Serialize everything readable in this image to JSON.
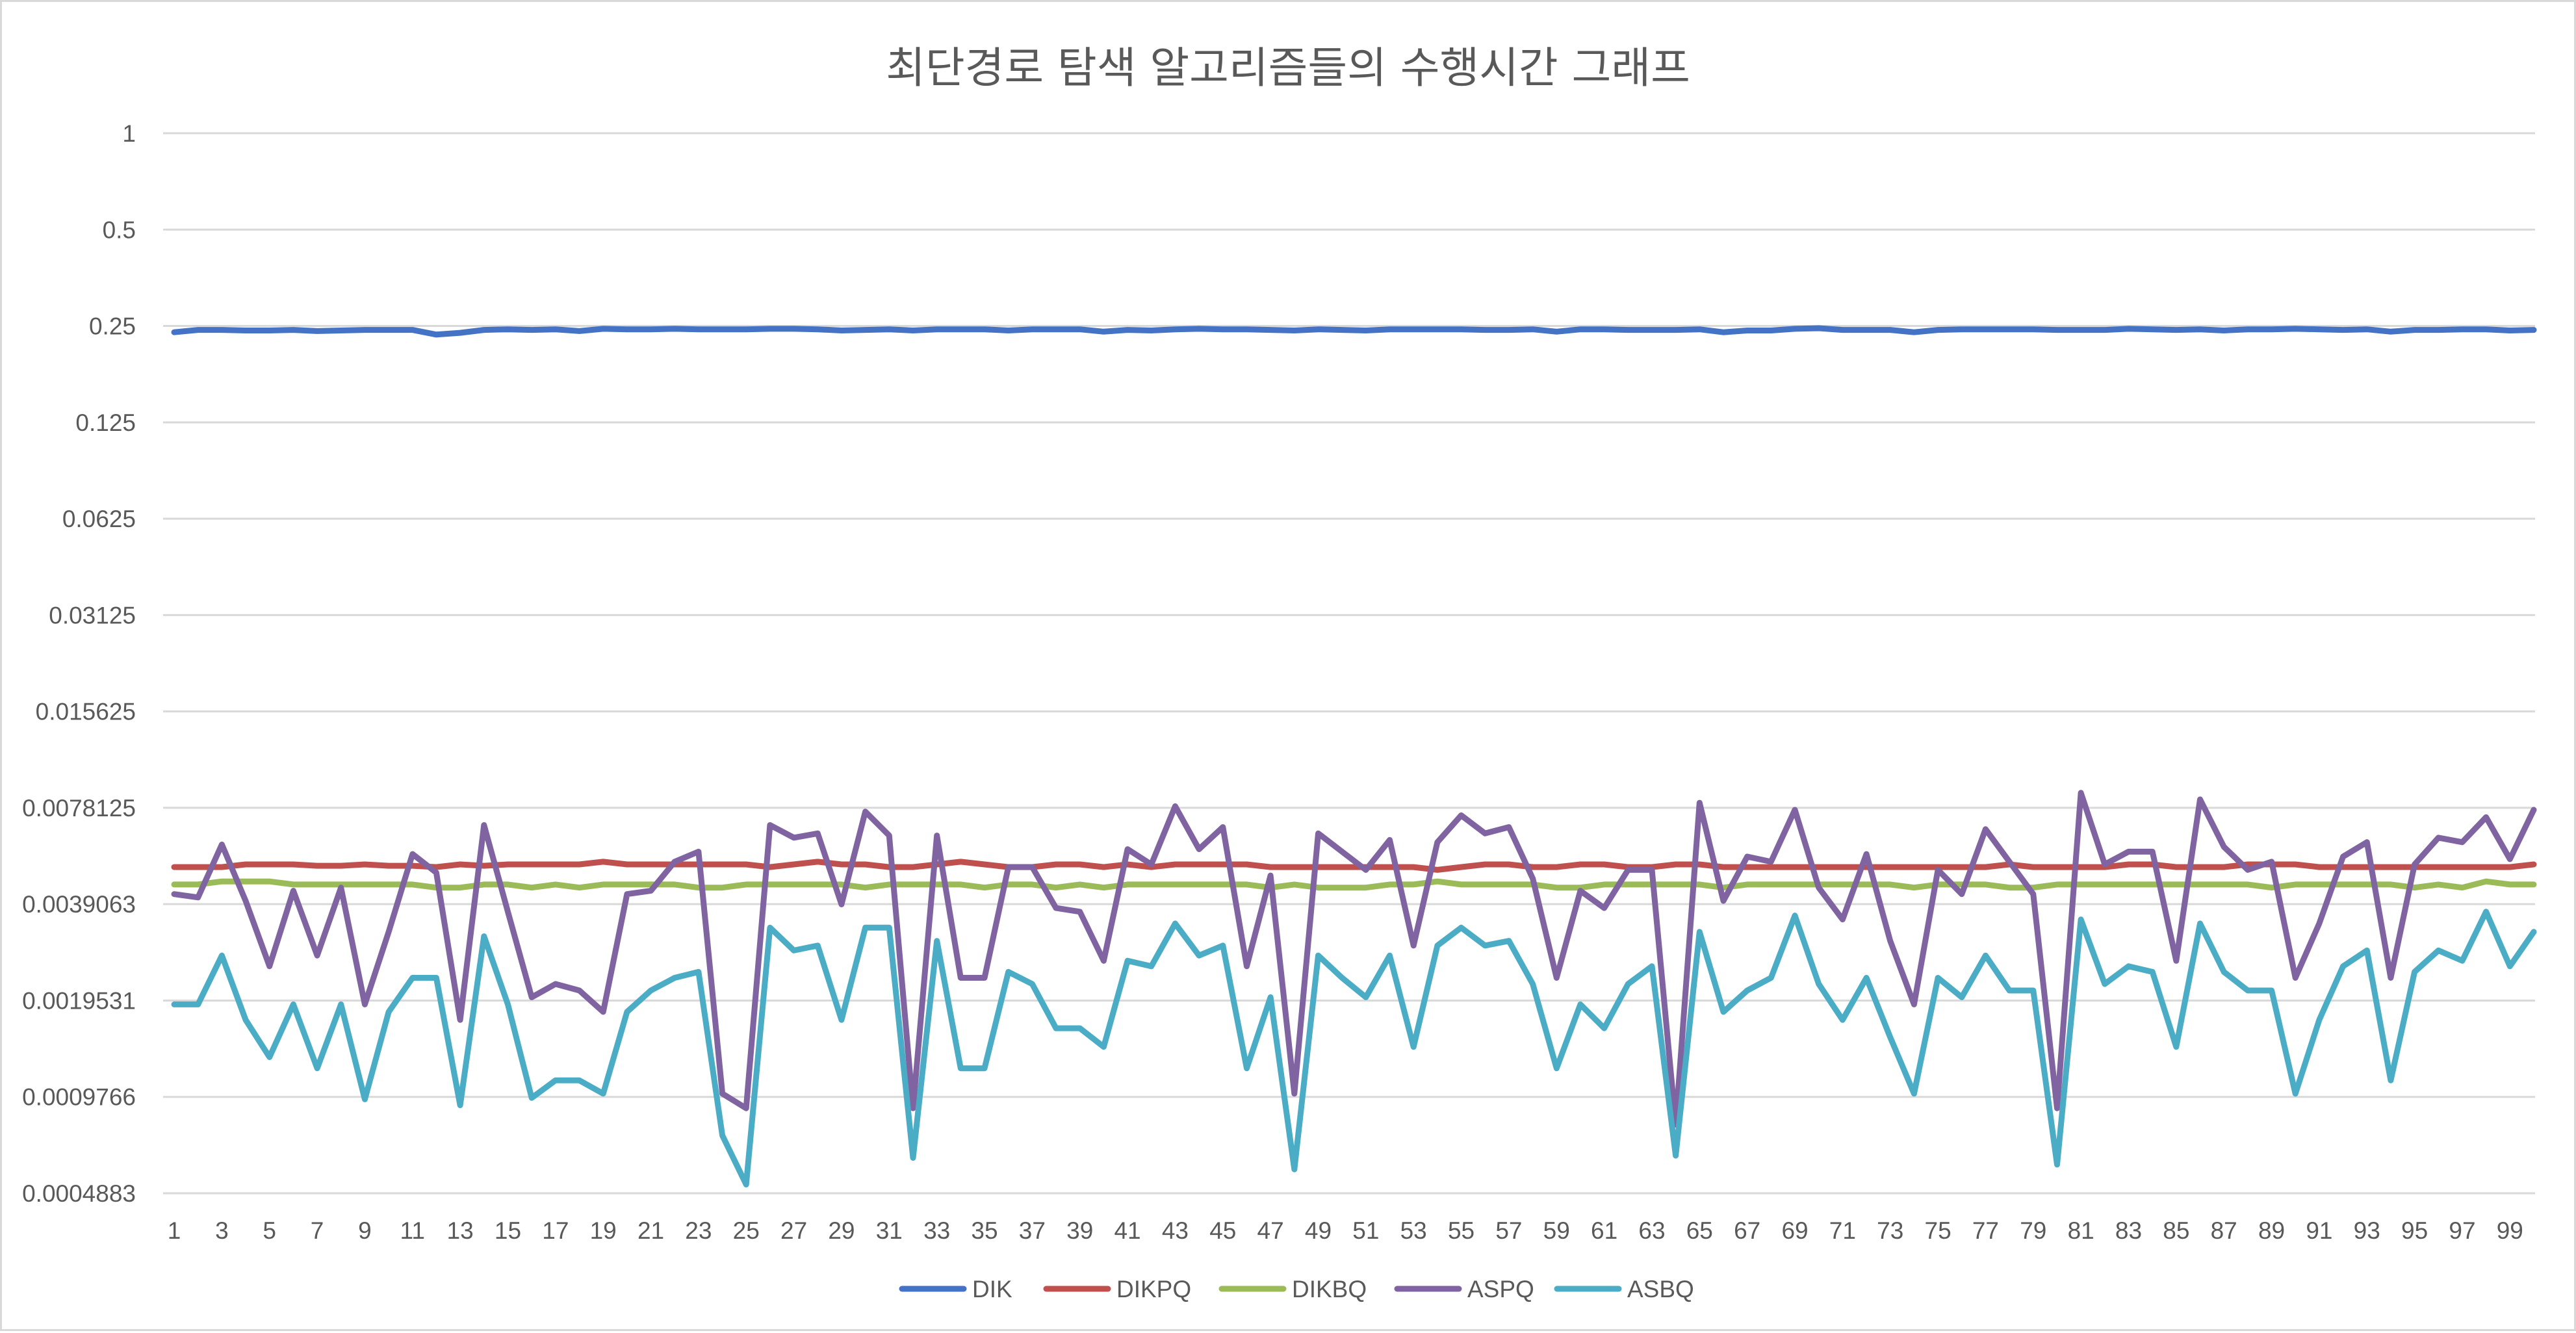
{
  "chart_data": {
    "type": "line",
    "title": "최단경로 탐색 알고리즘들의 수행시간 그래프",
    "xlabel": "",
    "ylabel": "",
    "y_scale": "log2",
    "ylim": [
      0.0004883,
      1
    ],
    "y_ticks": [
      "1",
      "0.5",
      "0.25",
      "0.125",
      "0.0625",
      "0.03125",
      "0.015625",
      "0.0078125",
      "0.0039063",
      "0.0019531",
      "0.0009766",
      "0.0004883"
    ],
    "y_tick_values": [
      1,
      0.5,
      0.25,
      0.125,
      0.0625,
      0.03125,
      0.015625,
      0.0078125,
      0.0039063,
      0.0019531,
      0.0009766,
      0.0004883
    ],
    "x_tick_labels": [
      "1",
      "3",
      "5",
      "7",
      "9",
      "11",
      "13",
      "15",
      "17",
      "19",
      "21",
      "23",
      "25",
      "27",
      "29",
      "31",
      "33",
      "35",
      "37",
      "39",
      "41",
      "43",
      "45",
      "47",
      "49",
      "51",
      "53",
      "55",
      "57",
      "59",
      "61",
      "63",
      "65",
      "67",
      "69",
      "71",
      "73",
      "75",
      "77",
      "79",
      "81",
      "83",
      "85",
      "87",
      "89",
      "91",
      "93",
      "95",
      "97",
      "99"
    ],
    "grid": true,
    "legend_position": "bottom",
    "x": [
      1,
      2,
      3,
      4,
      5,
      6,
      7,
      8,
      9,
      10,
      11,
      12,
      13,
      14,
      15,
      16,
      17,
      18,
      19,
      20,
      21,
      22,
      23,
      24,
      25,
      26,
      27,
      28,
      29,
      30,
      31,
      32,
      33,
      34,
      35,
      36,
      37,
      38,
      39,
      40,
      41,
      42,
      43,
      44,
      45,
      46,
      47,
      48,
      49,
      50,
      51,
      52,
      53,
      54,
      55,
      56,
      57,
      58,
      59,
      60,
      61,
      62,
      63,
      64,
      65,
      66,
      67,
      68,
      69,
      70,
      71,
      72,
      73,
      74,
      75,
      76,
      77,
      78,
      79,
      80,
      81,
      82,
      83,
      84,
      85,
      86,
      87,
      88,
      89,
      90,
      91,
      92,
      93,
      94,
      95,
      96,
      97,
      98,
      99,
      100
    ],
    "series": [
      {
        "name": "DIK",
        "color": "#4472c4",
        "values": [
          0.239,
          0.243,
          0.243,
          0.242,
          0.242,
          0.243,
          0.241,
          0.242,
          0.243,
          0.243,
          0.243,
          0.235,
          0.238,
          0.243,
          0.244,
          0.243,
          0.244,
          0.241,
          0.245,
          0.244,
          0.244,
          0.245,
          0.244,
          0.244,
          0.244,
          0.245,
          0.245,
          0.244,
          0.242,
          0.243,
          0.244,
          0.242,
          0.244,
          0.244,
          0.244,
          0.242,
          0.244,
          0.244,
          0.244,
          0.24,
          0.243,
          0.242,
          0.244,
          0.245,
          0.244,
          0.244,
          0.243,
          0.242,
          0.244,
          0.243,
          0.242,
          0.244,
          0.244,
          0.244,
          0.244,
          0.243,
          0.243,
          0.244,
          0.24,
          0.244,
          0.244,
          0.243,
          0.243,
          0.243,
          0.244,
          0.239,
          0.242,
          0.242,
          0.245,
          0.246,
          0.243,
          0.243,
          0.243,
          0.239,
          0.243,
          0.244,
          0.244,
          0.244,
          0.244,
          0.243,
          0.243,
          0.243,
          0.245,
          0.244,
          0.243,
          0.244,
          0.242,
          0.244,
          0.244,
          0.245,
          0.244,
          0.243,
          0.244,
          0.24,
          0.243,
          0.243,
          0.244,
          0.244,
          0.242,
          0.243
        ]
      },
      {
        "name": "DIKPQ",
        "color": "#c0504d",
        "values": [
          0.0051,
          0.0051,
          0.0051,
          0.0052,
          0.0052,
          0.0052,
          0.00515,
          0.00515,
          0.0052,
          0.00515,
          0.00515,
          0.0051,
          0.0052,
          0.00515,
          0.0052,
          0.0052,
          0.0052,
          0.0052,
          0.0053,
          0.0052,
          0.0052,
          0.0052,
          0.0052,
          0.0052,
          0.0052,
          0.0051,
          0.0052,
          0.0053,
          0.0052,
          0.0052,
          0.0051,
          0.0051,
          0.0052,
          0.0053,
          0.0052,
          0.0051,
          0.0051,
          0.0052,
          0.0052,
          0.0051,
          0.0052,
          0.0051,
          0.0052,
          0.0052,
          0.0052,
          0.0052,
          0.0051,
          0.0051,
          0.0051,
          0.0051,
          0.0051,
          0.0051,
          0.0051,
          0.005,
          0.0051,
          0.0052,
          0.0052,
          0.0051,
          0.0051,
          0.0052,
          0.0052,
          0.0051,
          0.0051,
          0.0052,
          0.0052,
          0.0051,
          0.0051,
          0.0051,
          0.0051,
          0.0051,
          0.0051,
          0.0051,
          0.0051,
          0.0051,
          0.0051,
          0.0051,
          0.0051,
          0.0052,
          0.0051,
          0.0051,
          0.0051,
          0.0051,
          0.0052,
          0.0052,
          0.0051,
          0.0051,
          0.0051,
          0.0052,
          0.0052,
          0.0052,
          0.0051,
          0.0051,
          0.0051,
          0.0051,
          0.0051,
          0.0051,
          0.0051,
          0.0051,
          0.0051,
          0.0052
        ]
      },
      {
        "name": "DIKBQ",
        "color": "#9bbb59",
        "values": [
          0.0045,
          0.0045,
          0.0046,
          0.0046,
          0.0046,
          0.0045,
          0.0045,
          0.0045,
          0.0045,
          0.0045,
          0.0045,
          0.0044,
          0.0044,
          0.0045,
          0.0045,
          0.0044,
          0.0045,
          0.0044,
          0.0045,
          0.0045,
          0.0045,
          0.0045,
          0.0044,
          0.0044,
          0.0045,
          0.0045,
          0.0045,
          0.0045,
          0.0045,
          0.0044,
          0.0045,
          0.0045,
          0.0045,
          0.0045,
          0.0044,
          0.0045,
          0.0045,
          0.0044,
          0.0045,
          0.0044,
          0.0045,
          0.0045,
          0.0045,
          0.0045,
          0.0045,
          0.0045,
          0.0044,
          0.0045,
          0.0044,
          0.0044,
          0.0044,
          0.0045,
          0.0045,
          0.0046,
          0.0045,
          0.0045,
          0.0045,
          0.0045,
          0.0044,
          0.0044,
          0.0045,
          0.0045,
          0.0045,
          0.0045,
          0.0045,
          0.0044,
          0.0045,
          0.0045,
          0.0045,
          0.0045,
          0.0045,
          0.0045,
          0.0045,
          0.0044,
          0.0045,
          0.0045,
          0.0045,
          0.0044,
          0.0044,
          0.0045,
          0.0045,
          0.0045,
          0.0045,
          0.0045,
          0.0045,
          0.0045,
          0.0045,
          0.0045,
          0.0044,
          0.0045,
          0.0045,
          0.0045,
          0.0045,
          0.0045,
          0.0044,
          0.0045,
          0.0044,
          0.0046,
          0.0045,
          0.0045
        ]
      },
      {
        "name": "ASPQ",
        "color": "#8064a2",
        "values": [
          0.0042,
          0.0041,
          0.006,
          0.004,
          0.0025,
          0.0043,
          0.0027,
          0.0044,
          0.0019,
          0.0032,
          0.0056,
          0.0049,
          0.0017,
          0.0069,
          0.0037,
          0.002,
          0.0022,
          0.0021,
          0.0018,
          0.0042,
          0.0043,
          0.0053,
          0.0057,
          0.001,
          0.0009,
          0.0069,
          0.0063,
          0.0065,
          0.0039,
          0.0076,
          0.0064,
          0.0009,
          0.0064,
          0.0023,
          0.0023,
          0.0051,
          0.0051,
          0.0038,
          0.0037,
          0.0026,
          0.0058,
          0.0052,
          0.0079,
          0.0058,
          0.0068,
          0.0025,
          0.0048,
          0.001,
          0.0065,
          0.0057,
          0.005,
          0.0062,
          0.0029,
          0.0061,
          0.0074,
          0.0065,
          0.0068,
          0.0047,
          0.0023,
          0.0043,
          0.0038,
          0.005,
          0.005,
          0.0008,
          0.0081,
          0.004,
          0.0055,
          0.0053,
          0.0077,
          0.0044,
          0.0035,
          0.0056,
          0.003,
          0.0019,
          0.005,
          0.0042,
          0.0067,
          0.0053,
          0.0042,
          0.0009,
          0.0087,
          0.0052,
          0.0057,
          0.0057,
          0.0026,
          0.0083,
          0.0059,
          0.005,
          0.0053,
          0.0023,
          0.0034,
          0.0055,
          0.0061,
          0.0023,
          0.0052,
          0.0063,
          0.0061,
          0.0073,
          0.0054,
          0.0077
        ]
      },
      {
        "name": "ASBQ",
        "color": "#4bacc6",
        "values": [
          0.0019,
          0.0019,
          0.0027,
          0.0017,
          0.0013,
          0.0019,
          0.0012,
          0.0019,
          0.00096,
          0.0018,
          0.0023,
          0.0023,
          0.00092,
          0.0031,
          0.0019,
          0.00097,
          0.0011,
          0.0011,
          0.001,
          0.0018,
          0.0021,
          0.0023,
          0.0024,
          0.00074,
          0.00052,
          0.0033,
          0.0028,
          0.0029,
          0.0017,
          0.0033,
          0.0033,
          0.00063,
          0.003,
          0.0012,
          0.0012,
          0.0024,
          0.0022,
          0.0016,
          0.0016,
          0.0014,
          0.0026,
          0.0025,
          0.0034,
          0.0027,
          0.0029,
          0.0012,
          0.002,
          0.00058,
          0.0027,
          0.0023,
          0.002,
          0.0027,
          0.0014,
          0.0029,
          0.0033,
          0.0029,
          0.003,
          0.0022,
          0.0012,
          0.0019,
          0.0016,
          0.0022,
          0.0025,
          0.00064,
          0.0032,
          0.0018,
          0.0021,
          0.0023,
          0.0036,
          0.0022,
          0.0017,
          0.0023,
          0.0015,
          0.001,
          0.0023,
          0.002,
          0.0027,
          0.0021,
          0.0021,
          0.0006,
          0.0035,
          0.0022,
          0.0025,
          0.0024,
          0.0014,
          0.0034,
          0.0024,
          0.0021,
          0.0021,
          0.001,
          0.0017,
          0.0025,
          0.0028,
          0.0011,
          0.0024,
          0.0028,
          0.0026,
          0.0037,
          0.0025,
          0.0032
        ]
      }
    ]
  }
}
